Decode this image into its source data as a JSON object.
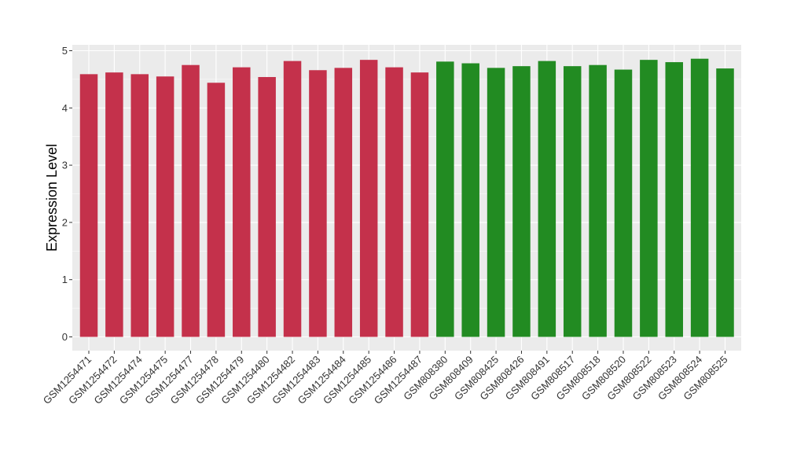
{
  "chart_data": {
    "type": "bar",
    "title": "",
    "xlabel": "",
    "ylabel": "Expression Level",
    "ylim": [
      0,
      5
    ],
    "y_ticks": [
      0,
      1,
      2,
      3,
      4,
      5
    ],
    "grid": true,
    "categories": [
      "GSM1254471",
      "GSM1254472",
      "GSM1254474",
      "GSM1254475",
      "GSM1254477",
      "GSM1254478",
      "GSM1254479",
      "GSM1254480",
      "GSM1254482",
      "GSM1254483",
      "GSM1254484",
      "GSM1254485",
      "GSM1254486",
      "GSM1254487",
      "GSM808380",
      "GSM808409",
      "GSM808425",
      "GSM808426",
      "GSM808491",
      "GSM808517",
      "GSM808518",
      "GSM808520",
      "GSM808522",
      "GSM808523",
      "GSM808524",
      "GSM808525"
    ],
    "values": [
      4.59,
      4.62,
      4.59,
      4.55,
      4.75,
      4.44,
      4.71,
      4.54,
      4.82,
      4.66,
      4.7,
      4.84,
      4.71,
      4.62,
      4.81,
      4.78,
      4.7,
      4.73,
      4.82,
      4.73,
      4.75,
      4.67,
      4.84,
      4.8,
      4.86,
      4.69
    ],
    "groups": [
      {
        "color": "#c4314b",
        "count": 14
      },
      {
        "color": "#228b22",
        "count": 12
      }
    ],
    "panel_background": "#ebebeb",
    "gridline_color": "#ffffff"
  }
}
